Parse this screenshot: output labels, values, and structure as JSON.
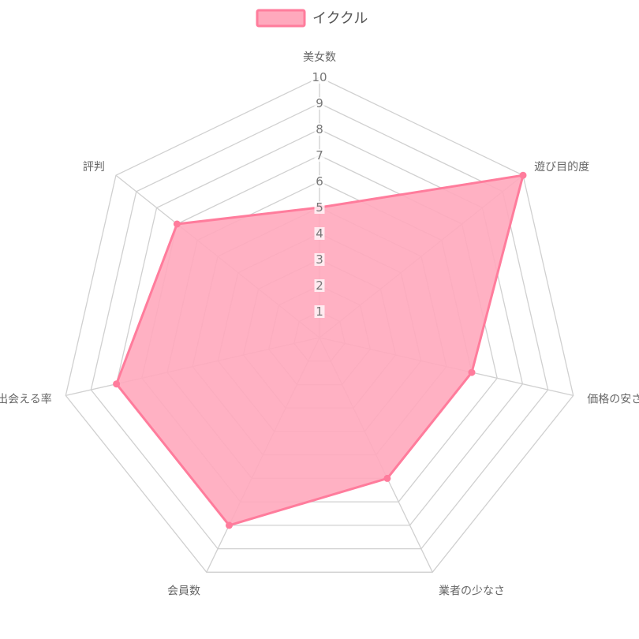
{
  "chart_data": {
    "type": "radar",
    "axes": [
      "美女数",
      "遊び目的度",
      "価格の安さ",
      "業者の少なさ",
      "会員数",
      "出会える率",
      "評判"
    ],
    "series": [
      {
        "name": "イククル",
        "values": [
          5,
          10,
          6,
          6,
          8,
          8,
          7
        ],
        "color": "#ff7c9c",
        "fill": "#ffa9bd"
      }
    ],
    "ticks": [
      "1",
      "2",
      "3",
      "4",
      "5",
      "6",
      "7",
      "8",
      "9",
      "10"
    ],
    "rmax": 10,
    "grid": true,
    "legend_position": "top"
  }
}
